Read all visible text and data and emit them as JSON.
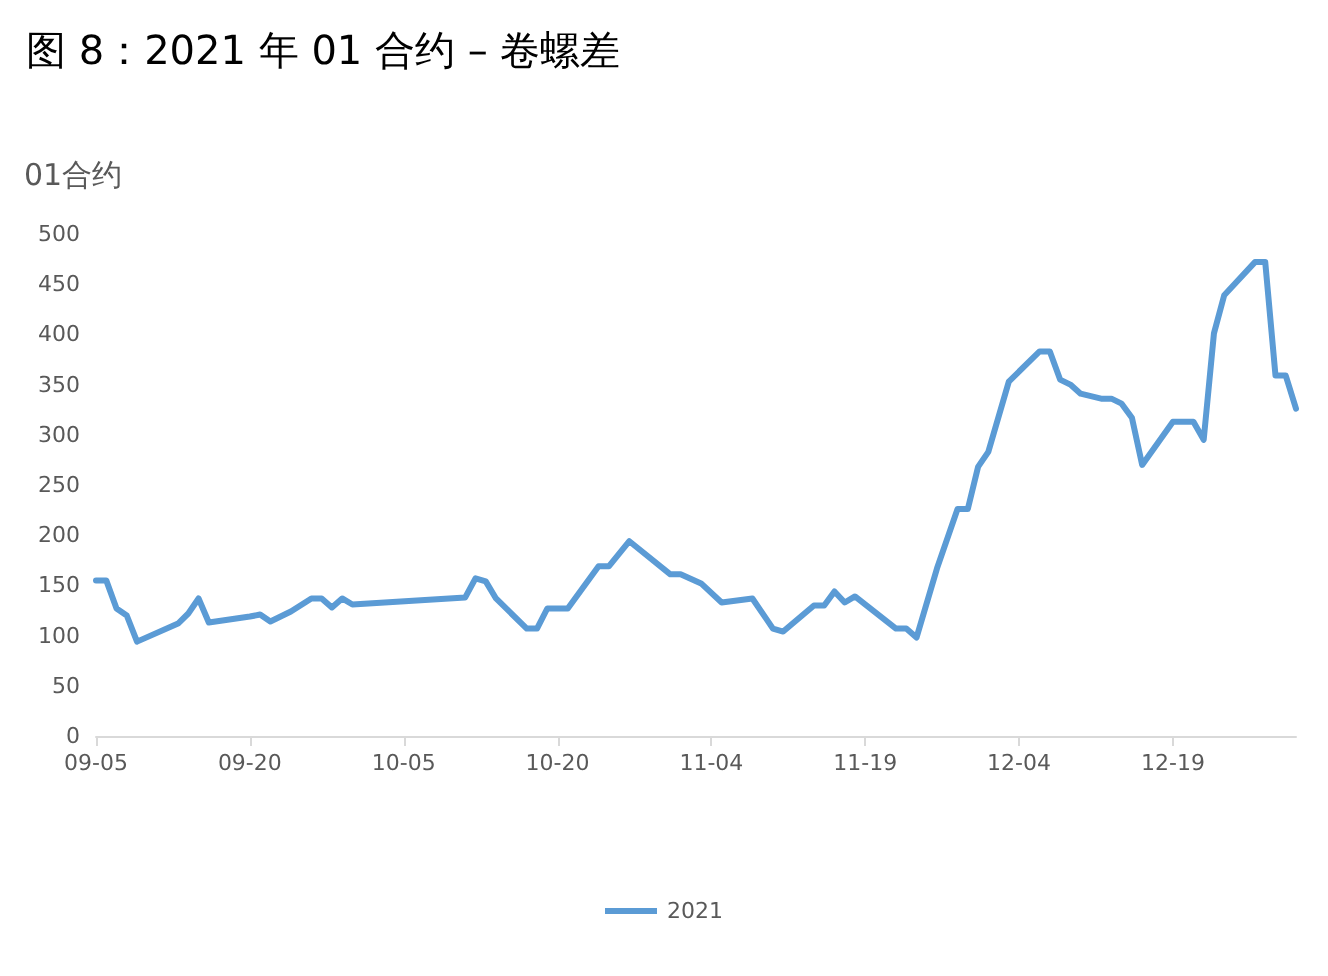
{
  "chart_data": {
    "type": "line",
    "title": "图 8：2021 年 01 合约 – 卷螺差",
    "ylabel": "01合约",
    "x": [
      "--09-05",
      "--09-06",
      "--09-07",
      "--09-08",
      "--09-09",
      "--09-13",
      "--09-14",
      "--09-15",
      "--09-16",
      "--09-20",
      "--09-21",
      "--09-22",
      "--09-24",
      "--09-26",
      "--09-27",
      "--09-28",
      "--09-29",
      "--09-30",
      "--10-11",
      "--10-12",
      "--10-13",
      "--10-14",
      "--10-17",
      "--10-18",
      "--10-19",
      "--10-21",
      "--10-24",
      "--10-25",
      "--10-27",
      "--10-31",
      "--11-01",
      "--11-03",
      "--11-05",
      "--11-08",
      "--11-10",
      "--11-11",
      "--11-14",
      "--11-15",
      "--11-16",
      "--11-17",
      "--11-18",
      "--11-22",
      "--11-23",
      "--11-24",
      "--11-26",
      "--11-28",
      "--11-29",
      "--11-30",
      "--12-01",
      "--12-03",
      "--12-06",
      "--12-07",
      "--12-08",
      "--12-09",
      "--12-10",
      "--12-12",
      "--12-13",
      "--12-14",
      "--12-15",
      "--12-16",
      "--12-19",
      "--12-21",
      "--12-22",
      "--12-23",
      "--12-24",
      "--12-27",
      "--12-28",
      "--12-29",
      "--12-30",
      "--12-31"
    ],
    "series": [
      {
        "name": "2021",
        "color": "#5b9bd5",
        "values": [
          155,
          155,
          127,
          120,
          94,
          112,
          122,
          137,
          113,
          119,
          121,
          114,
          124,
          137,
          137,
          128,
          137,
          131,
          138,
          157,
          154,
          137,
          107,
          107,
          127,
          127,
          169,
          169,
          194,
          161,
          161,
          152,
          133,
          137,
          107,
          104,
          130,
          130,
          144,
          133,
          139,
          107,
          107,
          98,
          167,
          226,
          226,
          268,
          283,
          353,
          383,
          383,
          355,
          350,
          341,
          336,
          336,
          331,
          317,
          270,
          313,
          313,
          295,
          401,
          439,
          472,
          472,
          359,
          359,
          326
        ]
      }
    ],
    "xlim": [
      "--09-05",
      "--12-31"
    ],
    "xticks": [
      {
        "value": "--09-05",
        "label": "09-05"
      },
      {
        "value": "--09-20",
        "label": "09-20"
      },
      {
        "value": "--10-05",
        "label": "10-05"
      },
      {
        "value": "--10-20",
        "label": "10-20"
      },
      {
        "value": "--11-04",
        "label": "11-04"
      },
      {
        "value": "--11-19",
        "label": "11-19"
      },
      {
        "value": "--12-04",
        "label": "12-04"
      },
      {
        "value": "--12-19",
        "label": "12-19"
      }
    ],
    "ylim": [
      0,
      500
    ],
    "yticks": [
      0,
      50,
      100,
      150,
      200,
      250,
      300,
      350,
      400,
      450,
      500
    ],
    "grid": false,
    "legend": "bottom",
    "marker": "none",
    "line_style": "solid"
  }
}
